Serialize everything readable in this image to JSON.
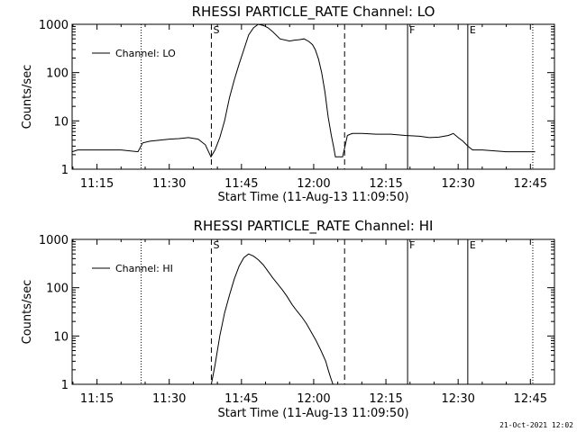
{
  "footer_timestamp": "21-Oct-2021 12:02",
  "chart_data": [
    {
      "type": "line",
      "title": "RHESSI PARTICLE_RATE Channel: LO",
      "xlabel": "Start Time (11-Aug-13 11:09:50)",
      "ylabel": "Counts/sec",
      "y_scale": "log",
      "ylim": [
        1,
        1000
      ],
      "xlim": [
        "11:09:50",
        "12:50:00"
      ],
      "x_ticks": [
        "11:15",
        "11:30",
        "11:45",
        "12:00",
        "12:15",
        "12:30",
        "12:45"
      ],
      "y_ticks": [
        "1",
        "10",
        "100",
        "1000"
      ],
      "legend": "Channel: LO",
      "legend_position": "top-left",
      "markers": [
        {
          "time": "11:24:10",
          "style": "dotted",
          "label": ""
        },
        {
          "time": "11:38:45",
          "style": "dashed",
          "label": "S"
        },
        {
          "time": "12:06:25",
          "style": "dashed",
          "label": ""
        },
        {
          "time": "12:19:30",
          "style": "solid",
          "label": "F"
        },
        {
          "time": "12:32:00",
          "style": "solid",
          "label": "E"
        },
        {
          "time": "12:45:30",
          "style": "dotted",
          "label": ""
        }
      ],
      "series": [
        {
          "name": "Channel: LO",
          "x": [
            "11:09:50",
            "11:11:00",
            "11:15:00",
            "11:20:00",
            "11:23:30",
            "11:24:30",
            "11:26:00",
            "11:28:00",
            "11:30:00",
            "11:32:00",
            "11:34:00",
            "11:36:00",
            "11:37:30",
            "11:38:40",
            "11:39:30",
            "11:40:30",
            "11:41:30",
            "11:42:30",
            "11:43:30",
            "11:44:30",
            "11:45:30",
            "11:46:30",
            "11:47:30",
            "11:48:30",
            "11:49:30",
            "11:50:30",
            "11:51:30",
            "11:53:00",
            "11:55:00",
            "11:56:00",
            "11:57:00",
            "11:58:00",
            "11:59:00",
            "11:59:45",
            "12:00:20",
            "12:01:00",
            "12:01:40",
            "12:02:20",
            "12:03:00",
            "12:03:40",
            "12:04:10",
            "12:04:30",
            "12:06:00",
            "12:06:30",
            "12:07:00",
            "12:08:00",
            "12:10:00",
            "12:13:00",
            "12:16:00",
            "12:19:00",
            "12:22:00",
            "12:24:00",
            "12:26:00",
            "12:28:00",
            "12:29:00",
            "12:30:00",
            "12:31:00",
            "12:32:00",
            "12:33:00",
            "12:35:00",
            "12:40:00",
            "12:45:00",
            "12:46:00"
          ],
          "values": [
            2.3,
            2.5,
            2.5,
            2.5,
            2.3,
            3.5,
            3.8,
            4.0,
            4.2,
            4.3,
            4.5,
            4.2,
            3.2,
            1.8,
            2.5,
            4.5,
            10,
            30,
            70,
            150,
            300,
            600,
            850,
            1000,
            950,
            850,
            700,
            500,
            450,
            470,
            480,
            500,
            440,
            380,
            300,
            190,
            100,
            40,
            12,
            5,
            2.8,
            1.8,
            1.8,
            3.0,
            5.0,
            5.5,
            5.5,
            5.3,
            5.3,
            5.0,
            4.8,
            4.5,
            4.6,
            5.0,
            5.5,
            4.5,
            3.8,
            3.0,
            2.5,
            2.5,
            2.3,
            2.3,
            2.3
          ]
        }
      ]
    },
    {
      "type": "line",
      "title": "RHESSI PARTICLE_RATE Channel: HI",
      "xlabel": "Start Time (11-Aug-13 11:09:50)",
      "ylabel": "Counts/sec",
      "y_scale": "log",
      "ylim": [
        1,
        1000
      ],
      "xlim": [
        "11:09:50",
        "12:50:00"
      ],
      "x_ticks": [
        "11:15",
        "11:30",
        "11:45",
        "12:00",
        "12:15",
        "12:30",
        "12:45"
      ],
      "y_ticks": [
        "1",
        "10",
        "100",
        "1000"
      ],
      "legend": "Channel: HI",
      "legend_position": "top-left",
      "markers": [
        {
          "time": "11:24:10",
          "style": "dotted",
          "label": ""
        },
        {
          "time": "11:38:45",
          "style": "dashed",
          "label": "S"
        },
        {
          "time": "12:06:25",
          "style": "dashed",
          "label": ""
        },
        {
          "time": "12:19:30",
          "style": "solid",
          "label": "F"
        },
        {
          "time": "12:32:00",
          "style": "solid",
          "label": "E"
        },
        {
          "time": "12:45:30",
          "style": "dotted",
          "label": ""
        }
      ],
      "series": [
        {
          "name": "Channel: HI",
          "x": [
            "11:38:45",
            "11:39:30",
            "11:40:30",
            "11:41:30",
            "11:42:30",
            "11:43:30",
            "11:44:30",
            "11:45:30",
            "11:46:30",
            "11:47:30",
            "11:48:30",
            "11:49:30",
            "11:50:30",
            "11:51:30",
            "11:52:30",
            "11:53:30",
            "11:54:30",
            "11:55:30",
            "11:56:30",
            "11:57:30",
            "11:58:30",
            "11:59:30",
            "12:00:30",
            "12:01:30",
            "12:02:30",
            "12:03:00",
            "12:03:30",
            "12:04:00"
          ],
          "values": [
            1.0,
            2.5,
            10,
            30,
            70,
            150,
            280,
            420,
            500,
            450,
            380,
            300,
            220,
            160,
            120,
            90,
            65,
            45,
            33,
            25,
            18,
            12,
            8,
            5,
            3,
            2,
            1.4,
            1.0
          ]
        }
      ]
    }
  ]
}
